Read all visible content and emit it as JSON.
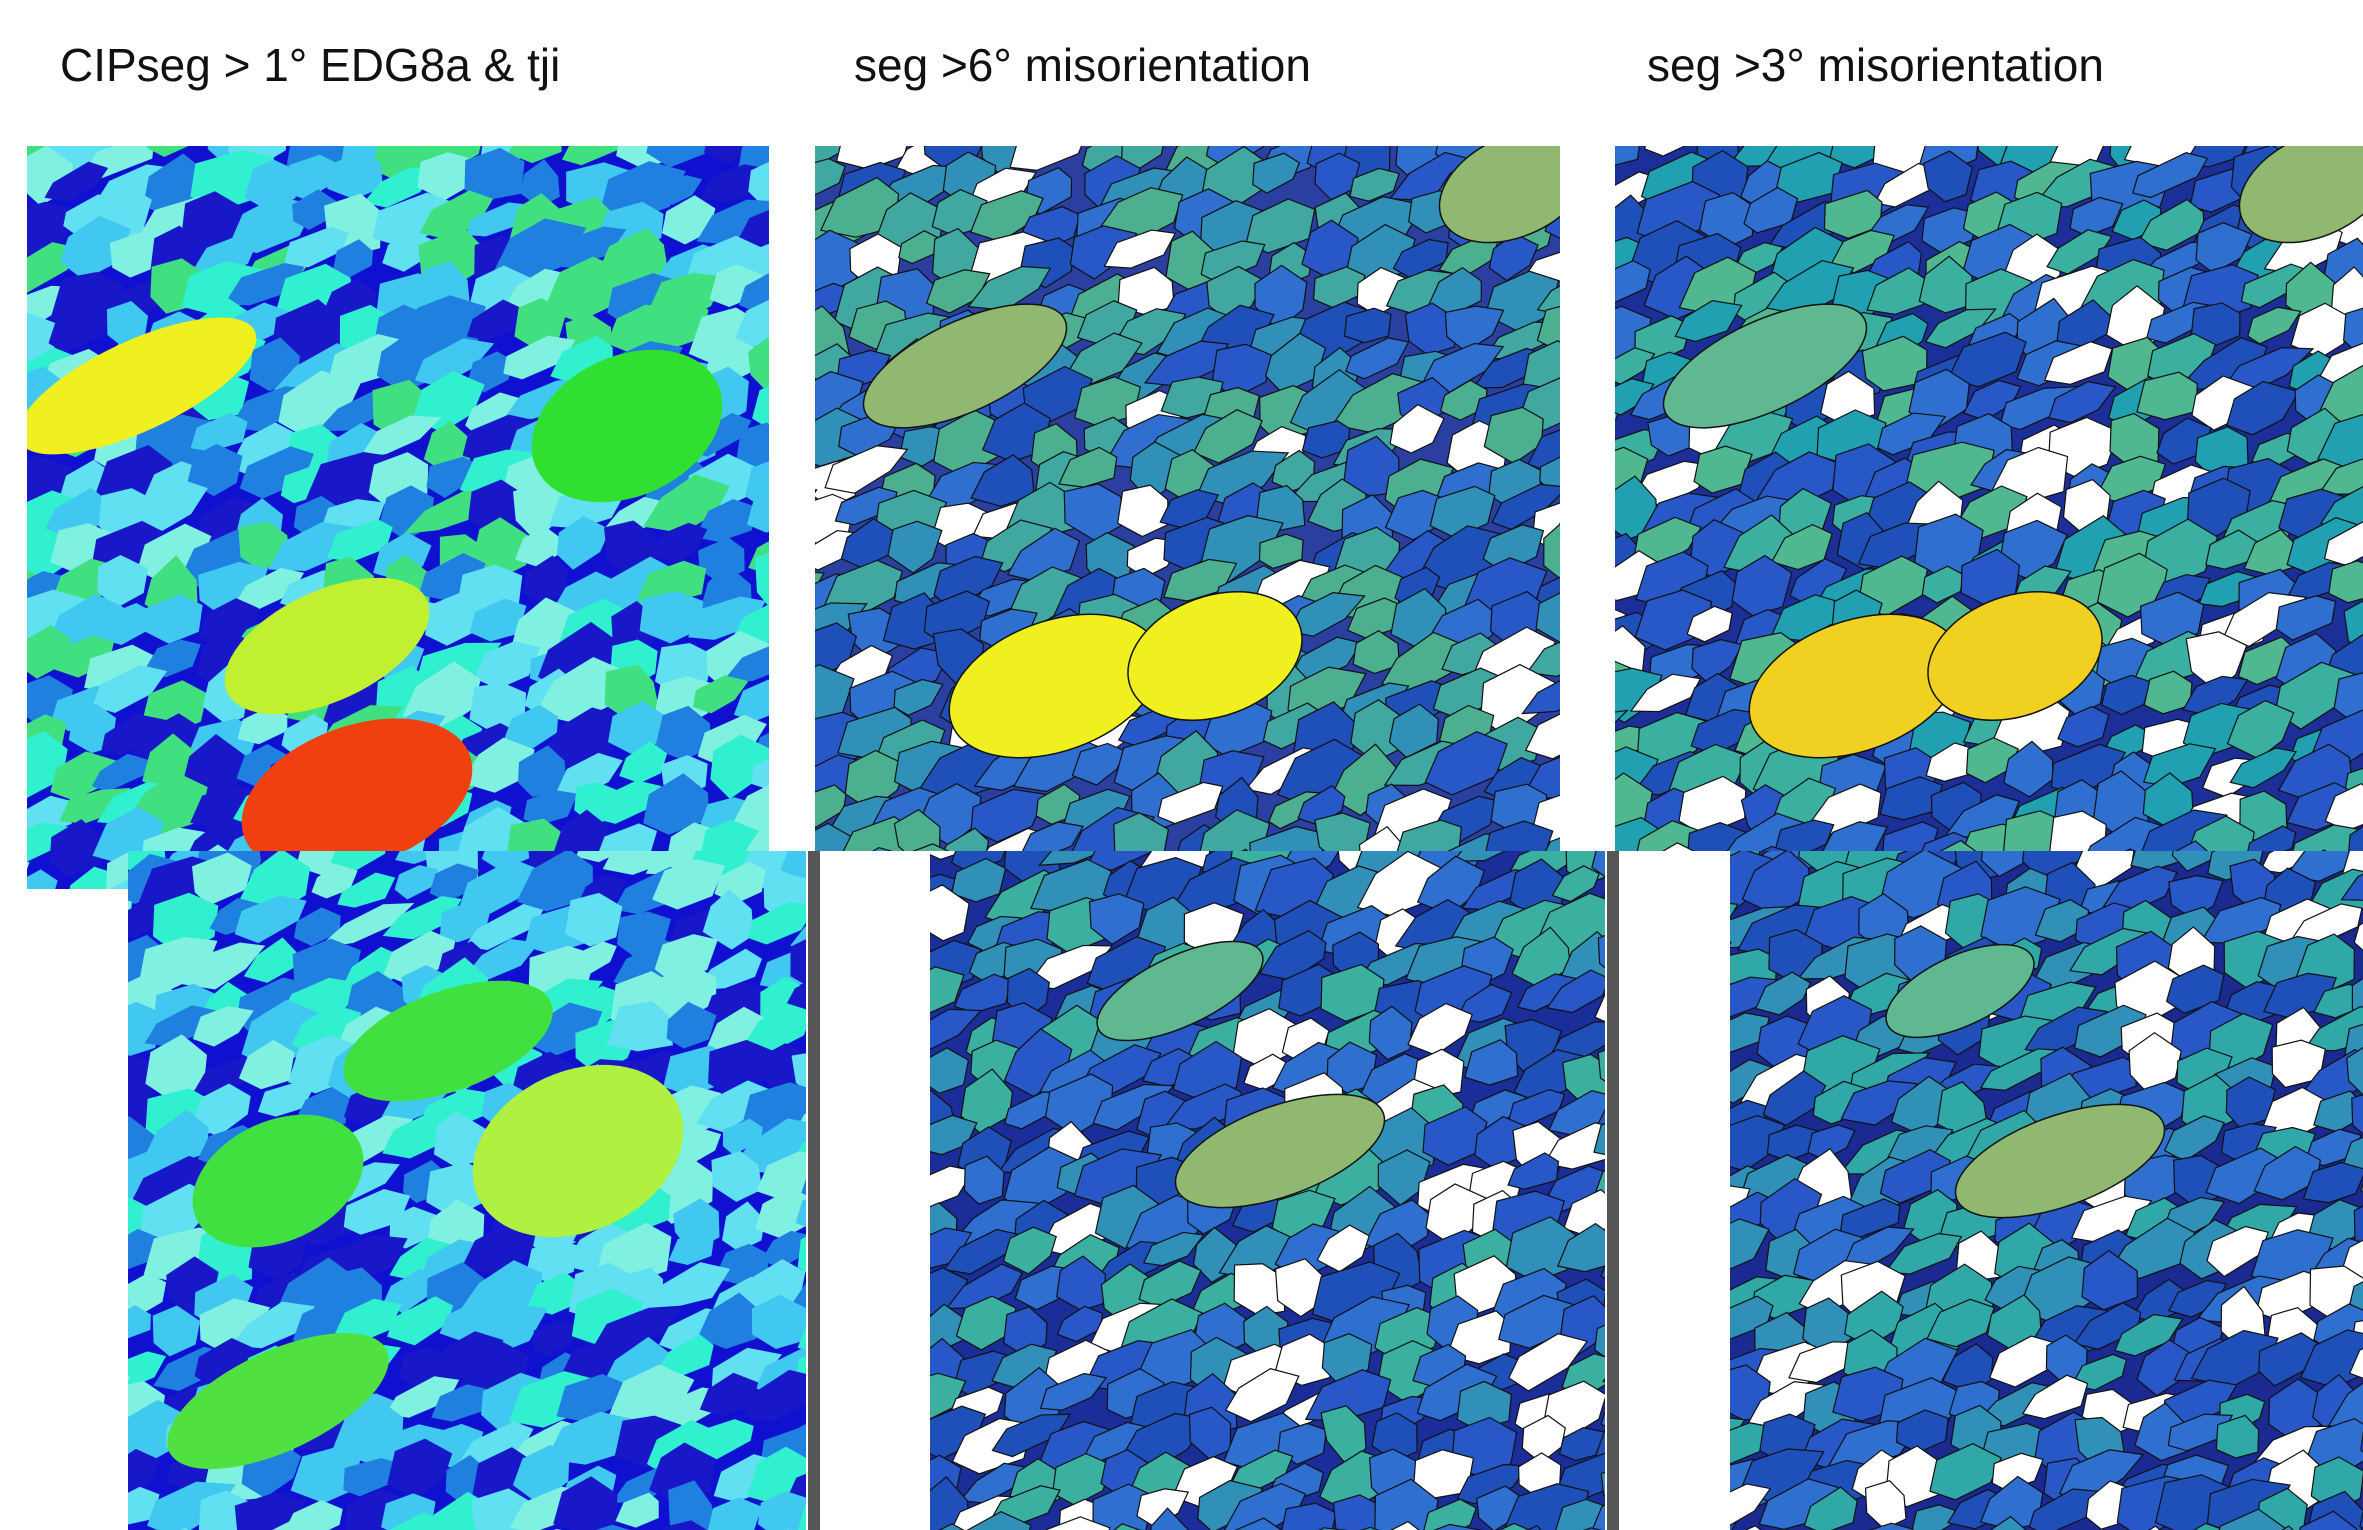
{
  "header": {
    "columns": [
      {
        "title": "CIPseg > 1° EDG8a & tji"
      },
      {
        "title": "seg >6° misorientation"
      },
      {
        "title": "seg >3° misorientation"
      }
    ]
  }
}
